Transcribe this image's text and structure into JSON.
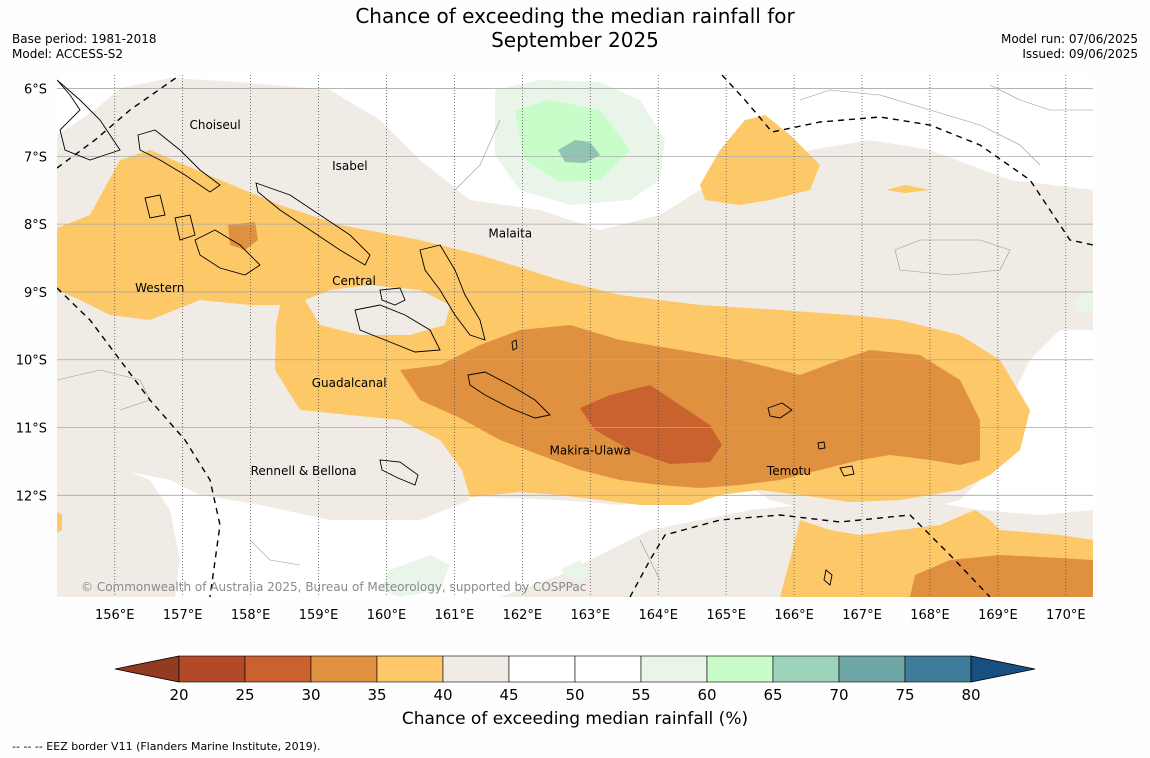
{
  "title": {
    "line1": "Chance of exceeding the median rainfall for",
    "line2": "September 2025"
  },
  "meta_left": {
    "base_period": "Base period: 1981-2018",
    "model": "Model: ACCESS-S2"
  },
  "meta_right": {
    "model_run": "Model run: 07/06/2025",
    "issued": "Issued: 09/06/2025"
  },
  "map": {
    "lat_labels": [
      "6°S",
      "7°S",
      "8°S",
      "9°S",
      "10°S",
      "11°S",
      "12°S"
    ],
    "lat_values": [
      -6,
      -7,
      -8,
      -9,
      -10,
      -11,
      -12
    ],
    "lon_labels": [
      "156°E",
      "157°E",
      "158°E",
      "159°E",
      "160°E",
      "161°E",
      "162°E",
      "163°E",
      "164°E",
      "165°E",
      "166°E",
      "167°E",
      "168°E",
      "169°E",
      "170°E"
    ],
    "lon_values": [
      156,
      157,
      158,
      159,
      160,
      161,
      162,
      163,
      164,
      165,
      166,
      167,
      168,
      169,
      170
    ],
    "extent": {
      "lon_min": 155.15,
      "lon_max": 170.4,
      "lat_min": -13.5,
      "lat_max": -5.8
    },
    "regions": [
      {
        "name": "Choiseul",
        "lon": 157.1,
        "lat": -6.6
      },
      {
        "name": "Isabel",
        "lon": 159.2,
        "lat": -7.2
      },
      {
        "name": "Malaita",
        "lon": 161.5,
        "lat": -8.2
      },
      {
        "name": "Western",
        "lon": 156.3,
        "lat": -9.0
      },
      {
        "name": "Central",
        "lon": 159.2,
        "lat": -8.9
      },
      {
        "name": "Guadalcanal",
        "lon": 158.9,
        "lat": -10.4
      },
      {
        "name": "Makira-Ulawa",
        "lon": 162.4,
        "lat": -11.4
      },
      {
        "name": "Rennell & Bellona",
        "lon": 158.0,
        "lat": -11.7
      },
      {
        "name": "Temotu",
        "lon": 165.6,
        "lat": -11.7
      }
    ],
    "copyright": "© Commonwealth of Australia 2025, Bureau of Meteorology, supported by COSPPac"
  },
  "colorbar": {
    "title": "Chance of exceeding median rainfall (%)",
    "ticks": [
      "20",
      "25",
      "30",
      "35",
      "40",
      "45",
      "50",
      "55",
      "60",
      "65",
      "70",
      "75",
      "80"
    ],
    "colors": [
      "#b24a29",
      "#c9622f",
      "#e0913f",
      "#fdc867",
      "#f1ebe6",
      "#ffffff",
      "#ffffff",
      "#e9f5e9",
      "#c8fcc8",
      "#9dd3bb",
      "#6fa6a6",
      "#3f7c99"
    ],
    "under_color": "#923a22",
    "over_color": "#184f82"
  },
  "footnote": "--  --  -- EEZ border V11 (Flanders Marine Institute, 2019)."
}
